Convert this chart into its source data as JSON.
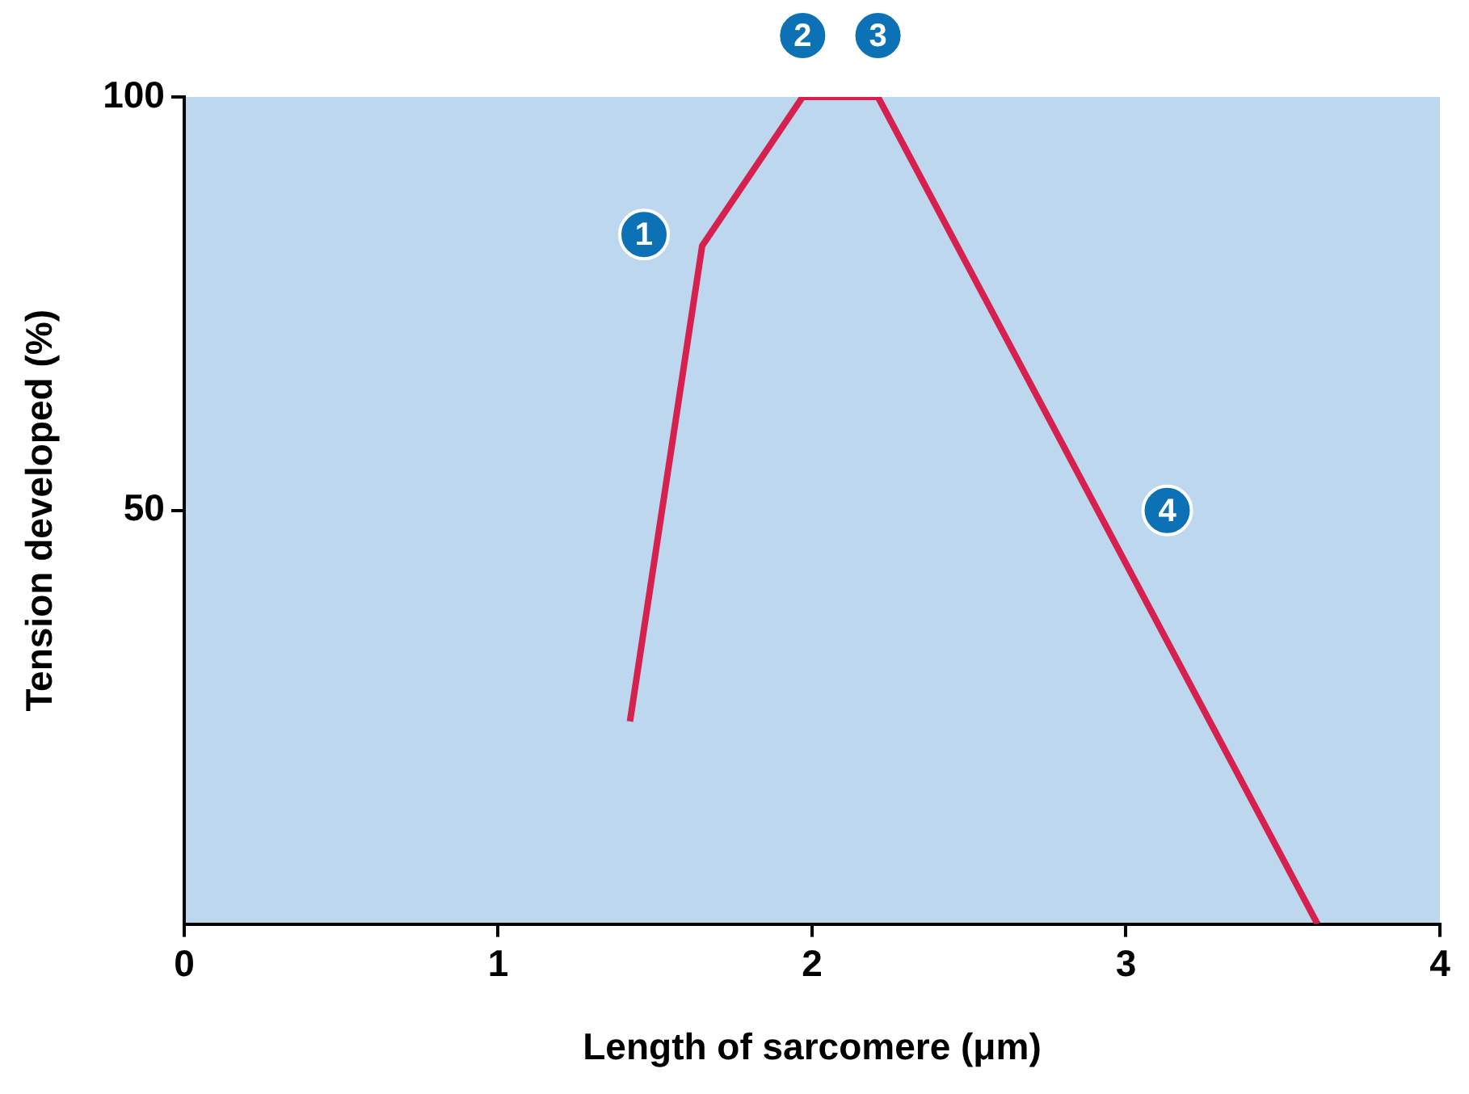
{
  "chart_data": {
    "type": "line",
    "xlabel": "Length of sarcomere (μm)",
    "ylabel": "Tension developed (%)",
    "xlim": [
      0,
      4
    ],
    "xticks": [
      0,
      1,
      2,
      3,
      4
    ],
    "ylim": [
      0,
      100
    ],
    "yticks": [
      50,
      100
    ],
    "grid": false,
    "legend": false,
    "marker": "none",
    "line_style": "solid",
    "x": [
      1.42,
      1.65,
      1.97,
      2.21,
      3.61
    ],
    "series": [
      {
        "color": "#d6204e",
        "values": [
          24.5,
          82,
          100,
          100,
          0
        ]
      }
    ],
    "annotations": [
      {
        "text": "1",
        "x": 1.65,
        "y": 82
      },
      {
        "text": "2",
        "x": 1.97,
        "y": 100
      },
      {
        "text": "3",
        "x": 2.21,
        "y": 100
      },
      {
        "text": "4",
        "x": 2.91,
        "y": 50
      }
    ]
  }
}
